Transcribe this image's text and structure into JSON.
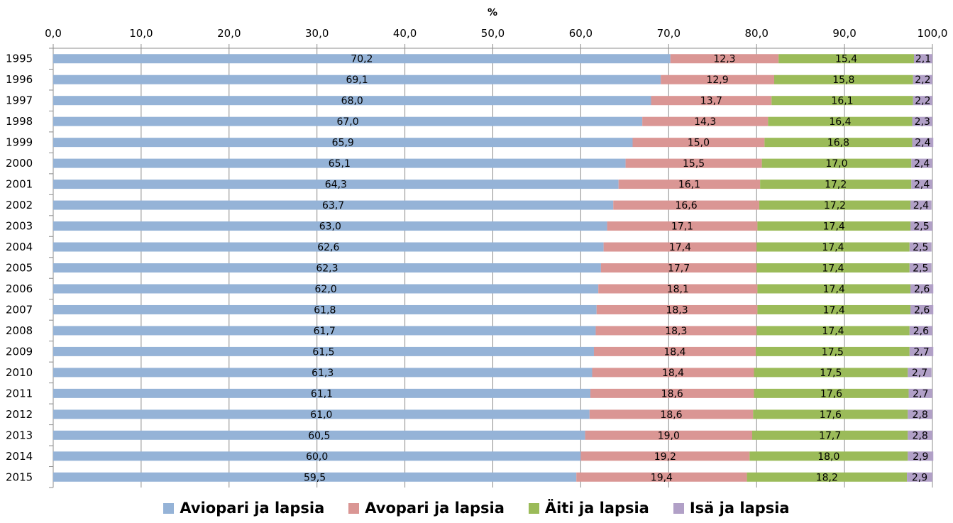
{
  "chart_data": {
    "type": "bar",
    "orientation": "horizontal",
    "stacked": true,
    "unit_label": "%",
    "x_axis": {
      "min": 0,
      "max": 100,
      "ticks": [
        0,
        10,
        20,
        30,
        40,
        50,
        60,
        70,
        80,
        90,
        100
      ],
      "tick_labels": [
        "0,0",
        "10,0",
        "20,0",
        "30,0",
        "40,0",
        "50,0",
        "60,0",
        "70,0",
        "80,0",
        "90,0",
        "100,0"
      ],
      "position": "top",
      "grid": true
    },
    "categories": [
      "1995",
      "1996",
      "1997",
      "1998",
      "1999",
      "2000",
      "2001",
      "2002",
      "2003",
      "2004",
      "2005",
      "2006",
      "2007",
      "2008",
      "2009",
      "2010",
      "2011",
      "2012",
      "2013",
      "2014",
      "2015"
    ],
    "series": [
      {
        "name": "Aviopari ja lapsia",
        "color": "#95b3d7",
        "values": [
          70.2,
          69.1,
          68.0,
          67.0,
          65.9,
          65.1,
          64.3,
          63.7,
          63.0,
          62.6,
          62.3,
          62.0,
          61.8,
          61.7,
          61.5,
          61.3,
          61.1,
          61.0,
          60.5,
          60.0,
          59.5
        ],
        "labels": [
          "70,2",
          "69,1",
          "68,0",
          "67,0",
          "65,9",
          "65,1",
          "64,3",
          "63,7",
          "63,0",
          "62,6",
          "62,3",
          "62,0",
          "61,8",
          "61,7",
          "61,5",
          "61,3",
          "61,1",
          "61,0",
          "60,5",
          "60,0",
          "59,5"
        ]
      },
      {
        "name": "Avopari ja lapsia",
        "color": "#da9694",
        "values": [
          12.3,
          12.9,
          13.7,
          14.3,
          15.0,
          15.5,
          16.1,
          16.6,
          17.1,
          17.4,
          17.7,
          18.1,
          18.3,
          18.3,
          18.4,
          18.4,
          18.6,
          18.6,
          19.0,
          19.2,
          19.4
        ],
        "labels": [
          "12,3",
          "12,9",
          "13,7",
          "14,3",
          "15,0",
          "15,5",
          "16,1",
          "16,6",
          "17,1",
          "17,4",
          "17,7",
          "18,1",
          "18,3",
          "18,3",
          "18,4",
          "18,4",
          "18,6",
          "18,6",
          "19,0",
          "19,2",
          "19,4"
        ]
      },
      {
        "name": "Äiti ja lapsia",
        "color": "#9bbb59",
        "values": [
          15.4,
          15.8,
          16.1,
          16.4,
          16.8,
          17.0,
          17.2,
          17.2,
          17.4,
          17.4,
          17.4,
          17.4,
          17.4,
          17.4,
          17.5,
          17.5,
          17.6,
          17.6,
          17.7,
          18.0,
          18.2
        ],
        "labels": [
          "15,4",
          "15,8",
          "16,1",
          "16,4",
          "16,8",
          "17,0",
          "17,2",
          "17,2",
          "17,4",
          "17,4",
          "17,4",
          "17,4",
          "17,4",
          "17,4",
          "17,5",
          "17,5",
          "17,6",
          "17,6",
          "17,7",
          "18,0",
          "18,2"
        ]
      },
      {
        "name": "Isä ja lapsia",
        "color": "#b1a0c7",
        "values": [
          2.1,
          2.2,
          2.2,
          2.3,
          2.4,
          2.4,
          2.4,
          2.4,
          2.5,
          2.5,
          2.5,
          2.6,
          2.6,
          2.6,
          2.7,
          2.7,
          2.7,
          2.8,
          2.8,
          2.9,
          2.9
        ],
        "labels": [
          "2,1",
          "2,2",
          "2,2",
          "2,3",
          "2,4",
          "2,4",
          "2,4",
          "2,4",
          "2,5",
          "2,5",
          "2,5",
          "2,6",
          "2,6",
          "2,6",
          "2,7",
          "2,7",
          "2,7",
          "2,8",
          "2,8",
          "2,9",
          "2,9"
        ]
      }
    ],
    "legend_position": "bottom"
  }
}
